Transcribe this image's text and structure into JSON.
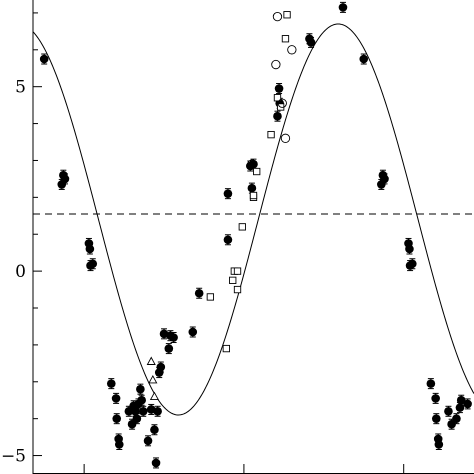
{
  "chart_data": {
    "type": "scatter",
    "title": "",
    "xlabel": "",
    "ylabel": "",
    "xlim": [
      0,
      1.38
    ],
    "ylim": [
      -5.5,
      7.35
    ],
    "y_ticks": [
      {
        "value": 5,
        "label": "5"
      },
      {
        "value": 0,
        "label": "0"
      },
      {
        "value": -5,
        "label": "−5"
      }
    ],
    "x_ticks": [
      0.16,
      0.66,
      1.16
    ],
    "reference_line": {
      "y": 1.55,
      "style": "dashed"
    },
    "fit_curve": {
      "description": "sinusoidal fit",
      "mean": 1.4,
      "amplitude": 5.3,
      "period": 1.0,
      "phase_of_max": 0.955
    },
    "series": [
      {
        "marker": "filled-circle",
        "error_bars": true,
        "points": [
          [
            0.035,
            5.75
          ],
          [
            0.09,
            2.35
          ],
          [
            0.095,
            2.6
          ],
          [
            0.1,
            2.5
          ],
          [
            0.175,
            0.75
          ],
          [
            0.178,
            0.6
          ],
          [
            0.18,
            0.15
          ],
          [
            0.187,
            0.2
          ],
          [
            0.245,
            -3.05
          ],
          [
            0.26,
            -3.45
          ],
          [
            0.262,
            -4.0
          ],
          [
            0.268,
            -4.55
          ],
          [
            0.27,
            -4.7
          ],
          [
            0.3,
            -3.8
          ],
          [
            0.31,
            -4.15
          ],
          [
            0.315,
            -3.65
          ],
          [
            0.32,
            -3.8
          ],
          [
            0.325,
            -4.0
          ],
          [
            0.33,
            -3.6
          ],
          [
            0.336,
            -3.2
          ],
          [
            0.34,
            -3.5
          ],
          [
            0.345,
            -3.8
          ],
          [
            0.36,
            -4.6
          ],
          [
            0.37,
            -3.75
          ],
          [
            0.38,
            -4.3
          ],
          [
            0.385,
            -5.2
          ],
          [
            0.39,
            -3.8
          ],
          [
            0.395,
            -2.75
          ],
          [
            0.4,
            -2.6
          ],
          [
            0.41,
            -1.7
          ],
          [
            0.425,
            -2.1
          ],
          [
            0.43,
            -1.75
          ],
          [
            0.44,
            -1.8
          ],
          [
            0.5,
            -1.65
          ],
          [
            0.52,
            -0.6
          ],
          [
            0.61,
            0.85
          ],
          [
            0.61,
            2.1
          ],
          [
            0.68,
            2.85
          ],
          [
            0.685,
            2.25
          ],
          [
            0.69,
            2.9
          ],
          [
            0.765,
            4.2
          ],
          [
            0.77,
            4.95
          ],
          [
            0.772,
            4.55
          ],
          [
            0.865,
            6.3
          ],
          [
            0.87,
            6.2
          ],
          [
            0.97,
            7.15
          ],
          [
            1.035,
            5.75
          ],
          [
            1.09,
            2.35
          ],
          [
            1.095,
            2.6
          ],
          [
            1.1,
            2.5
          ],
          [
            1.175,
            0.75
          ],
          [
            1.178,
            0.6
          ],
          [
            1.18,
            0.15
          ],
          [
            1.187,
            0.2
          ],
          [
            1.245,
            -3.05
          ],
          [
            1.26,
            -3.45
          ],
          [
            1.262,
            -4.0
          ],
          [
            1.268,
            -4.55
          ],
          [
            1.27,
            -4.7
          ],
          [
            1.3,
            -3.8
          ],
          [
            1.31,
            -4.15
          ],
          [
            1.325,
            -4.0
          ],
          [
            1.336,
            -3.7
          ],
          [
            1.34,
            -3.5
          ],
          [
            1.36,
            -3.6
          ]
        ]
      },
      {
        "marker": "open-square",
        "error_bars": false,
        "points": [
          [
            0.555,
            -0.7
          ],
          [
            0.605,
            -2.1
          ],
          [
            0.625,
            -0.25
          ],
          [
            0.63,
            0.0
          ],
          [
            0.64,
            -0.5
          ],
          [
            0.64,
            0.0
          ],
          [
            0.655,
            1.2
          ],
          [
            0.69,
            2.0
          ],
          [
            0.69,
            2.05
          ],
          [
            0.7,
            2.7
          ],
          [
            0.745,
            3.7
          ],
          [
            0.765,
            4.7
          ],
          [
            0.775,
            4.45
          ],
          [
            0.79,
            6.3
          ],
          [
            0.795,
            6.95
          ]
        ]
      },
      {
        "marker": "open-circle",
        "error_bars": false,
        "points": [
          [
            0.685,
            2.9
          ],
          [
            0.76,
            5.6
          ],
          [
            0.765,
            6.9
          ],
          [
            0.78,
            4.55
          ],
          [
            0.79,
            3.6
          ],
          [
            0.81,
            6.0
          ]
        ]
      },
      {
        "marker": "open-triangle",
        "error_bars": false,
        "points": [
          [
            0.37,
            -2.45
          ],
          [
            0.375,
            -2.95
          ],
          [
            0.38,
            -3.4
          ]
        ]
      }
    ]
  }
}
